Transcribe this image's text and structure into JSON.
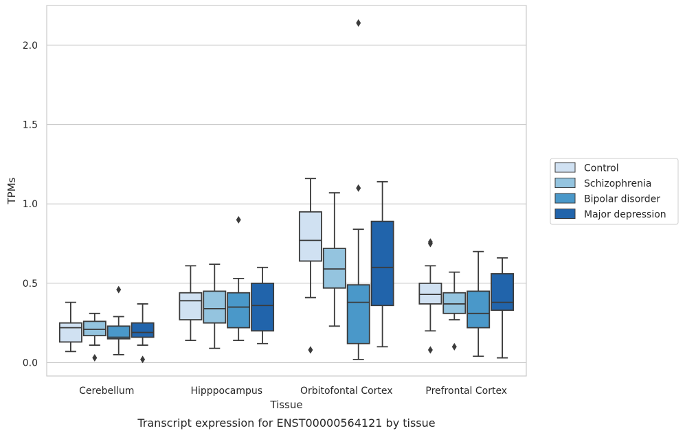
{
  "chart_data": {
    "type": "boxplot",
    "caption": "Transcript expression for ENST00000564121 by tissue",
    "xlabel": "Tissue",
    "ylabel": "TPMs",
    "ylim": [
      -0.08,
      2.25
    ],
    "yticks": [
      "0.0",
      "0.5",
      "1.0",
      "1.5",
      "2.0"
    ],
    "grid": "horizontal",
    "legend_position": "right",
    "categories": [
      "Cerebellum",
      "Hipppocampus",
      "Orbitofontal Cortex",
      "Prefrontal Cortex"
    ],
    "series": [
      {
        "name": "Control",
        "color": "#d0e1f2",
        "boxes": [
          {
            "whislo": 0.07,
            "q1": 0.13,
            "med": 0.22,
            "q3": 0.25,
            "whishi": 0.38,
            "fliers": []
          },
          {
            "whislo": 0.14,
            "q1": 0.27,
            "med": 0.39,
            "q3": 0.44,
            "whishi": 0.61,
            "fliers": []
          },
          {
            "whislo": 0.41,
            "q1": 0.64,
            "med": 0.77,
            "q3": 0.95,
            "whishi": 1.16,
            "fliers": [
              0.08
            ]
          },
          {
            "whislo": 0.2,
            "q1": 0.37,
            "med": 0.43,
            "q3": 0.5,
            "whishi": 0.61,
            "fliers": [
              0.08,
              0.75,
              0.76
            ]
          }
        ]
      },
      {
        "name": "Schizophrenia",
        "color": "#94c4df",
        "boxes": [
          {
            "whislo": 0.11,
            "q1": 0.17,
            "med": 0.21,
            "q3": 0.26,
            "whishi": 0.31,
            "fliers": [
              0.03
            ]
          },
          {
            "whislo": 0.09,
            "q1": 0.25,
            "med": 0.34,
            "q3": 0.45,
            "whishi": 0.62,
            "fliers": []
          },
          {
            "whislo": 0.23,
            "q1": 0.47,
            "med": 0.59,
            "q3": 0.72,
            "whishi": 1.07,
            "fliers": []
          },
          {
            "whislo": 0.27,
            "q1": 0.31,
            "med": 0.37,
            "q3": 0.44,
            "whishi": 0.57,
            "fliers": [
              0.1
            ]
          }
        ]
      },
      {
        "name": "Bipolar disorder",
        "color": "#4a98c9",
        "boxes": [
          {
            "whislo": 0.05,
            "q1": 0.15,
            "med": 0.16,
            "q3": 0.23,
            "whishi": 0.29,
            "fliers": [
              0.46
            ]
          },
          {
            "whislo": 0.14,
            "q1": 0.22,
            "med": 0.35,
            "q3": 0.44,
            "whishi": 0.53,
            "fliers": [
              0.9
            ]
          },
          {
            "whislo": 0.02,
            "q1": 0.12,
            "med": 0.38,
            "q3": 0.49,
            "whishi": 0.84,
            "fliers": [
              1.1,
              2.14
            ]
          },
          {
            "whislo": 0.04,
            "q1": 0.22,
            "med": 0.31,
            "q3": 0.45,
            "whishi": 0.7,
            "fliers": []
          }
        ]
      },
      {
        "name": "Major depression",
        "color": "#2164ab",
        "boxes": [
          {
            "whislo": 0.11,
            "q1": 0.16,
            "med": 0.19,
            "q3": 0.25,
            "whishi": 0.37,
            "fliers": [
              0.02
            ]
          },
          {
            "whislo": 0.12,
            "q1": 0.2,
            "med": 0.36,
            "q3": 0.5,
            "whishi": 0.6,
            "fliers": []
          },
          {
            "whislo": 0.1,
            "q1": 0.36,
            "med": 0.6,
            "q3": 0.89,
            "whishi": 1.14,
            "fliers": []
          },
          {
            "whislo": 0.03,
            "q1": 0.33,
            "med": 0.38,
            "q3": 0.56,
            "whishi": 0.66,
            "fliers": []
          }
        ]
      }
    ]
  }
}
